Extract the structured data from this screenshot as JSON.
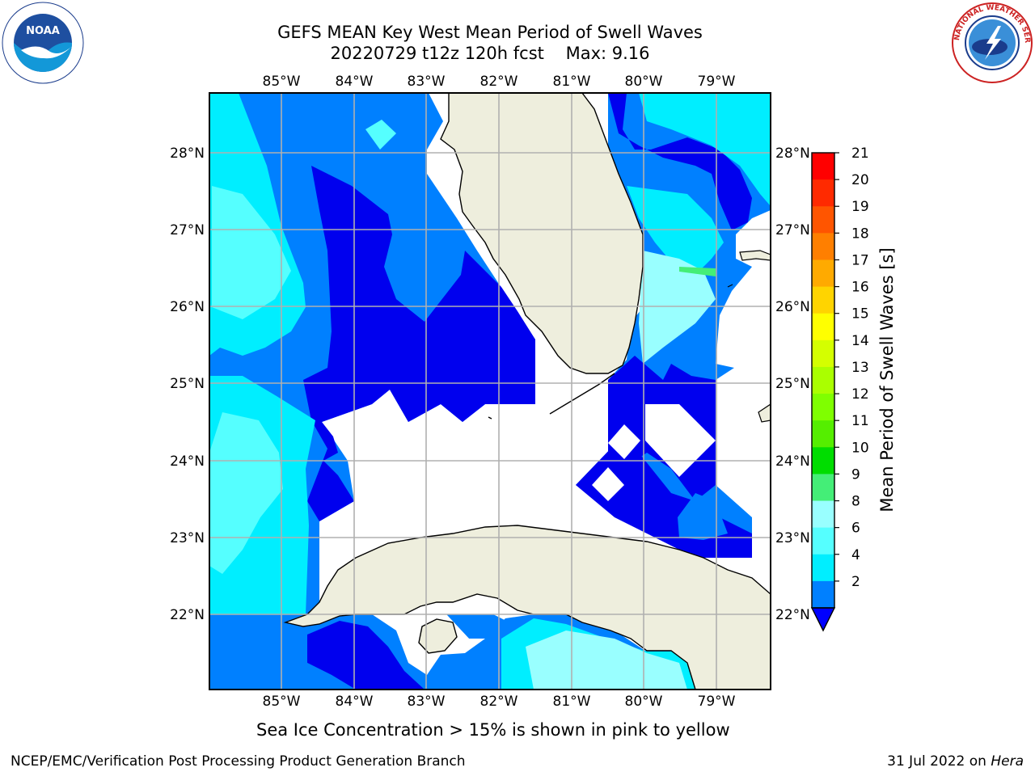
{
  "header": {
    "title_line1": "GEFS MEAN Key West Mean Period of Swell Waves",
    "title_line2": "20220729 t12z 120h fcst    Max: 9.16"
  },
  "logos": {
    "left": {
      "icon": "noaa-logo",
      "text": "NOAA"
    },
    "right": {
      "icon": "national-weather-service-logo",
      "text": "NATIONAL WEATHER SERVICE"
    }
  },
  "map": {
    "lon_labels": [
      "85°W",
      "84°W",
      "83°W",
      "82°W",
      "81°W",
      "80°W",
      "79°W"
    ],
    "lat_labels": [
      "28°N",
      "27°N",
      "26°N",
      "25°N",
      "24°N",
      "23°N",
      "22°N"
    ],
    "extent": {
      "lon_min": -86.0,
      "lon_max": -78.25,
      "lat_min": 21.0,
      "lat_max": 28.75
    },
    "colors": {
      "land": "#eeeedd",
      "ocean_low": "#0000ff",
      "grid": "#b0b0b0"
    }
  },
  "colorbar": {
    "title": "Mean Period of Swell Waves [s]",
    "ticks": [
      "21",
      "20",
      "19",
      "18",
      "17",
      "16",
      "15",
      "14",
      "13",
      "12",
      "11",
      "10",
      "9",
      "8",
      "6",
      "4",
      "2"
    ],
    "colors": [
      "#ff0000",
      "#ff2a00",
      "#ff5500",
      "#ff7f00",
      "#ffaa00",
      "#ffd400",
      "#ffff00",
      "#d4ff00",
      "#aaff00",
      "#7fff00",
      "#55ee00",
      "#00dd00",
      "#44ee77",
      "#99ffff",
      "#55ffff",
      "#00eeff",
      "#0080ff"
    ],
    "extend_color": "#0000ff"
  },
  "footer": {
    "note": "Sea Ice Concentration > 15% is shown in pink to yellow",
    "credit_left": "NCEP/EMC/Verification Post Processing Product Generation Branch",
    "credit_date": "31 Jul 2022 on ",
    "credit_host": "Hera"
  }
}
